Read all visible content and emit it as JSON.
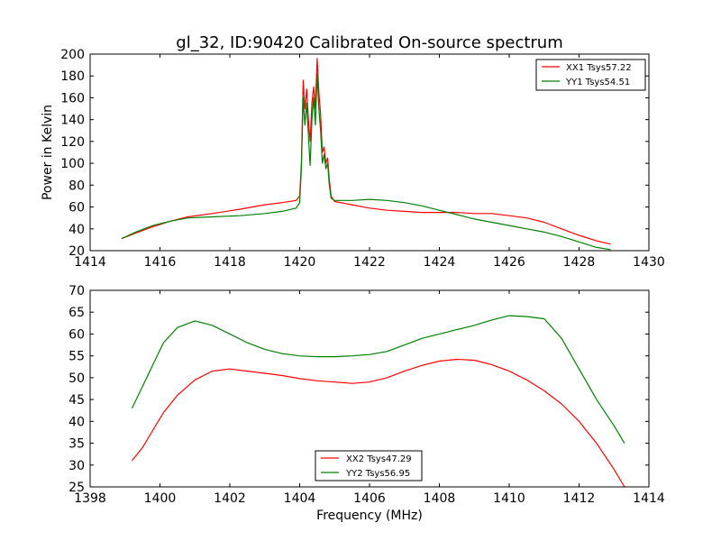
{
  "figure": {
    "title": "gl_32, ID:90420 Calibrated On-source spectrum"
  },
  "colors": {
    "XX": "#ff0000",
    "YY": "#008000",
    "axes": "#000000"
  },
  "chart_data": [
    {
      "type": "line",
      "title": "gl_32, ID:90420 Calibrated On-source spectrum",
      "xlabel": "",
      "ylabel": "Power in Kelvin",
      "xlim": [
        1414,
        1430
      ],
      "ylim": [
        20,
        200
      ],
      "xticks": [
        1414,
        1416,
        1418,
        1420,
        1422,
        1424,
        1426,
        1428,
        1430
      ],
      "yticks": [
        20,
        40,
        60,
        80,
        100,
        120,
        140,
        160,
        180,
        200
      ],
      "grid": false,
      "legend_position": "upper-right",
      "series": [
        {
          "name": "XX1 Tsys57.22",
          "color": "#ff0000",
          "x": [
            1414.9,
            1415.3,
            1415.8,
            1416.3,
            1416.8,
            1417.5,
            1418.3,
            1419.0,
            1419.5,
            1419.9,
            1420.0,
            1420.05,
            1420.1,
            1420.15,
            1420.2,
            1420.25,
            1420.3,
            1420.35,
            1420.4,
            1420.45,
            1420.5,
            1420.55,
            1420.6,
            1420.65,
            1420.7,
            1420.75,
            1420.8,
            1420.85,
            1420.9,
            1421.0,
            1421.5,
            1422.0,
            1422.5,
            1423.0,
            1423.5,
            1424.0,
            1424.5,
            1425.0,
            1425.5,
            1426.0,
            1426.5,
            1427.0,
            1427.5,
            1428.0,
            1428.5,
            1428.9
          ],
          "values": [
            31,
            36,
            42,
            47,
            51,
            54,
            58,
            62,
            64,
            66,
            70,
            100,
            176,
            150,
            168,
            140,
            120,
            155,
            170,
            150,
            196,
            165,
            145,
            110,
            115,
            100,
            105,
            85,
            70,
            65,
            62,
            59,
            57,
            56,
            55,
            55,
            55,
            54,
            54,
            52,
            50,
            46,
            40,
            34,
            29,
            26
          ]
        },
        {
          "name": "YY1 Tsys54.51",
          "color": "#008000",
          "x": [
            1414.9,
            1415.3,
            1415.8,
            1416.3,
            1416.8,
            1417.5,
            1418.3,
            1419.0,
            1419.5,
            1419.9,
            1420.0,
            1420.05,
            1420.1,
            1420.15,
            1420.2,
            1420.25,
            1420.3,
            1420.35,
            1420.4,
            1420.45,
            1420.5,
            1420.55,
            1420.6,
            1420.65,
            1420.7,
            1420.75,
            1420.8,
            1420.85,
            1420.9,
            1421.0,
            1421.5,
            1422.0,
            1422.5,
            1423.0,
            1423.5,
            1424.0,
            1424.5,
            1425.0,
            1425.5,
            1426.0,
            1426.5,
            1427.0,
            1427.5,
            1428.0,
            1428.5,
            1428.9
          ],
          "values": [
            31,
            37,
            43,
            47,
            50,
            51,
            52,
            54,
            56,
            59,
            64,
            95,
            160,
            135,
            155,
            125,
            98,
            140,
            160,
            135,
            182,
            150,
            130,
            100,
            108,
            95,
            100,
            80,
            68,
            66,
            66,
            67,
            66,
            64,
            61,
            57,
            53,
            49,
            46,
            43,
            40,
            37,
            33,
            28,
            23,
            21
          ]
        }
      ]
    },
    {
      "type": "line",
      "title": "",
      "xlabel": "Frequency (MHz)",
      "ylabel": "",
      "xlim": [
        1398,
        1414
      ],
      "ylim": [
        25,
        70
      ],
      "xticks": [
        1398,
        1400,
        1402,
        1404,
        1406,
        1408,
        1410,
        1412,
        1414
      ],
      "yticks": [
        25,
        30,
        35,
        40,
        45,
        50,
        55,
        60,
        65,
        70
      ],
      "grid": false,
      "legend_position": "lower-center",
      "series": [
        {
          "name": "XX2 Tsys47.29",
          "color": "#ff0000",
          "x": [
            1399.2,
            1399.5,
            1399.8,
            1400.1,
            1400.5,
            1401.0,
            1401.5,
            1402.0,
            1402.5,
            1403.0,
            1403.5,
            1404.0,
            1404.5,
            1405.0,
            1405.5,
            1406.0,
            1406.5,
            1407.0,
            1407.5,
            1408.0,
            1408.5,
            1409.0,
            1409.5,
            1410.0,
            1410.5,
            1411.0,
            1411.5,
            1412.0,
            1412.5,
            1413.0,
            1413.3
          ],
          "values": [
            31,
            34,
            38,
            42,
            46,
            49.5,
            51.5,
            52,
            51.5,
            51,
            50.5,
            49.8,
            49.3,
            49,
            48.7,
            49,
            50,
            51.5,
            52.8,
            53.8,
            54.2,
            54,
            53,
            51.5,
            49.5,
            47,
            44,
            40,
            35,
            29,
            25
          ]
        },
        {
          "name": "YY2 Tsys56.95",
          "color": "#008000",
          "x": [
            1399.2,
            1399.5,
            1399.8,
            1400.1,
            1400.5,
            1401.0,
            1401.5,
            1402.0,
            1402.5,
            1403.0,
            1403.5,
            1404.0,
            1404.5,
            1405.0,
            1405.5,
            1406.0,
            1406.5,
            1407.0,
            1407.5,
            1408.0,
            1408.5,
            1409.0,
            1409.5,
            1410.0,
            1410.5,
            1411.0,
            1411.5,
            1412.0,
            1412.5,
            1413.0,
            1413.3
          ],
          "values": [
            43,
            48,
            53,
            58,
            61.5,
            63,
            62,
            60,
            58,
            56.5,
            55.5,
            55,
            54.8,
            54.8,
            55,
            55.3,
            56,
            57.5,
            59,
            60,
            61,
            62,
            63.2,
            64.2,
            64,
            63.5,
            59,
            52,
            45,
            39,
            35
          ]
        }
      ]
    }
  ]
}
